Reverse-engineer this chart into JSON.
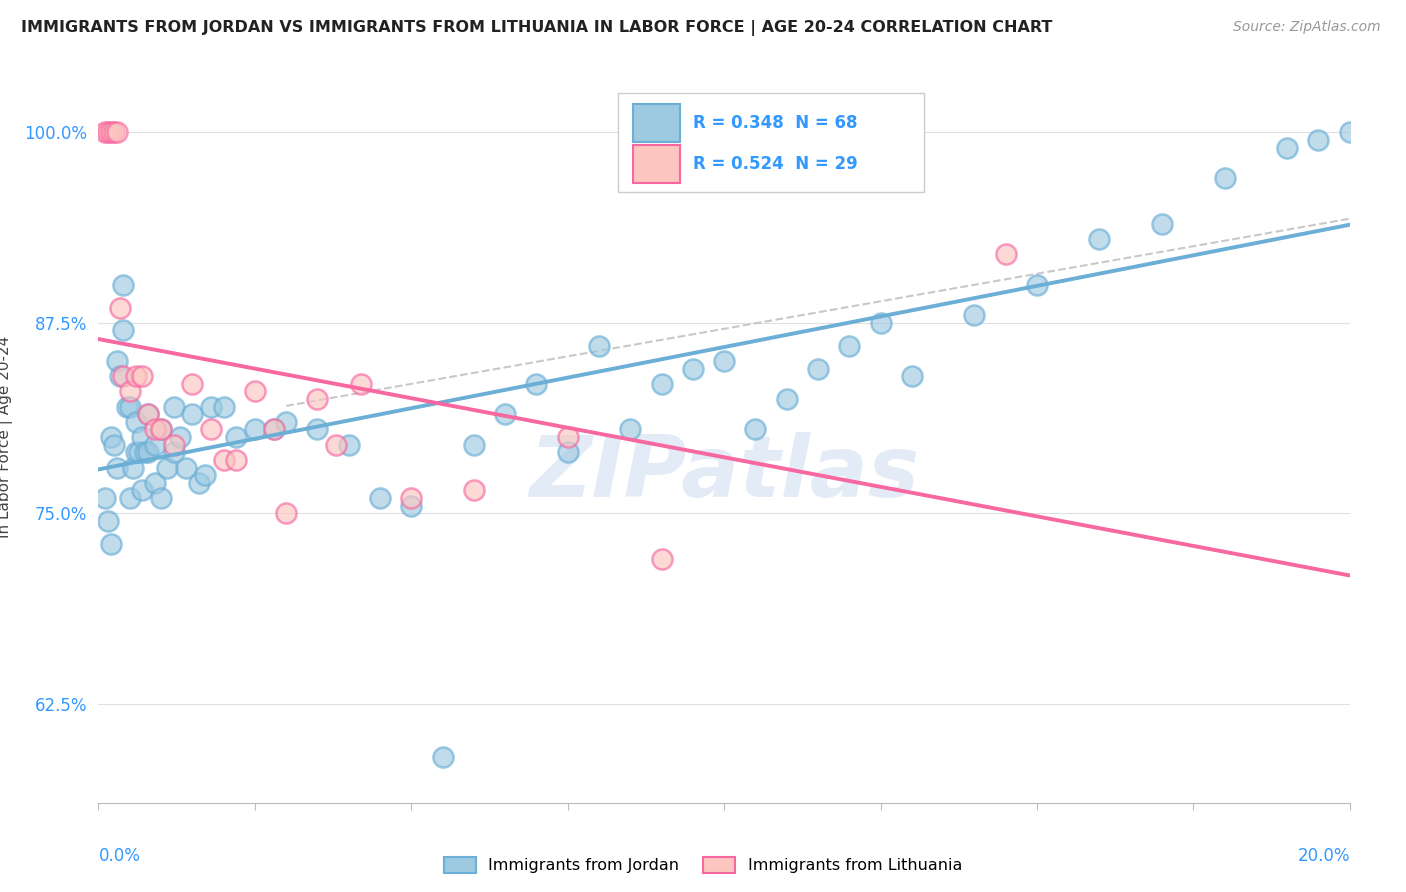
{
  "title": "IMMIGRANTS FROM JORDAN VS IMMIGRANTS FROM LITHUANIA IN LABOR FORCE | AGE 20-24 CORRELATION CHART",
  "source": "Source: ZipAtlas.com",
  "ylabel": "In Labor Force | Age 20-24",
  "y_ticks": [
    62.5,
    75.0,
    87.5,
    100.0
  ],
  "x_min": 0.0,
  "x_max": 20.0,
  "y_min": 56.0,
  "y_max": 104.0,
  "jordan_color": "#6baed6",
  "jordan_fill": "#9ecae1",
  "lithuania_color": "#f768a1",
  "lithuania_fill": "#fcc5c0",
  "jordan_R": 0.348,
  "jordan_N": 68,
  "lithuania_R": 0.524,
  "lithuania_N": 29,
  "watermark": "ZIPatlas",
  "background_color": "#ffffff",
  "grid_color": "#e0e0e0",
  "jordan_x": [
    0.1,
    0.15,
    0.2,
    0.2,
    0.25,
    0.3,
    0.3,
    0.35,
    0.4,
    0.4,
    0.45,
    0.5,
    0.5,
    0.55,
    0.6,
    0.6,
    0.65,
    0.7,
    0.7,
    0.75,
    0.8,
    0.8,
    0.9,
    0.9,
    1.0,
    1.0,
    1.1,
    1.2,
    1.2,
    1.3,
    1.4,
    1.5,
    1.6,
    1.7,
    1.8,
    2.0,
    2.2,
    2.5,
    2.8,
    3.0,
    3.5,
    4.0,
    4.5,
    5.0,
    5.5,
    6.0,
    6.5,
    7.0,
    7.5,
    8.0,
    8.5,
    9.0,
    9.5,
    10.0,
    10.5,
    11.0,
    11.5,
    12.0,
    12.5,
    13.0,
    14.0,
    15.0,
    16.0,
    17.0,
    18.0,
    19.0,
    19.5,
    20.0
  ],
  "jordan_y": [
    76.0,
    74.5,
    80.0,
    73.0,
    79.5,
    85.0,
    78.0,
    84.0,
    90.0,
    87.0,
    82.0,
    76.0,
    82.0,
    78.0,
    79.0,
    81.0,
    79.0,
    76.5,
    80.0,
    79.0,
    79.0,
    81.5,
    77.0,
    79.5,
    80.5,
    76.0,
    78.0,
    82.0,
    79.0,
    80.0,
    78.0,
    81.5,
    77.0,
    77.5,
    82.0,
    82.0,
    80.0,
    80.5,
    80.5,
    81.0,
    80.5,
    79.5,
    76.0,
    75.5,
    59.0,
    79.5,
    81.5,
    83.5,
    79.0,
    86.0,
    80.5,
    83.5,
    84.5,
    85.0,
    80.5,
    82.5,
    84.5,
    86.0,
    87.5,
    84.0,
    88.0,
    90.0,
    93.0,
    94.0,
    97.0,
    99.0,
    99.5,
    100.0
  ],
  "lithuania_x": [
    0.1,
    0.15,
    0.2,
    0.25,
    0.3,
    0.35,
    0.4,
    0.5,
    0.6,
    0.7,
    0.8,
    0.9,
    1.0,
    1.2,
    1.5,
    1.8,
    2.0,
    2.2,
    2.5,
    2.8,
    3.0,
    3.5,
    3.8,
    4.2,
    5.0,
    6.0,
    7.5,
    9.0,
    14.5
  ],
  "lithuania_y": [
    100.0,
    100.0,
    100.0,
    100.0,
    100.0,
    88.5,
    84.0,
    83.0,
    84.0,
    84.0,
    81.5,
    80.5,
    80.5,
    79.5,
    83.5,
    80.5,
    78.5,
    78.5,
    83.0,
    80.5,
    75.0,
    82.5,
    79.5,
    83.5,
    76.0,
    76.5,
    80.0,
    72.0,
    92.0
  ]
}
